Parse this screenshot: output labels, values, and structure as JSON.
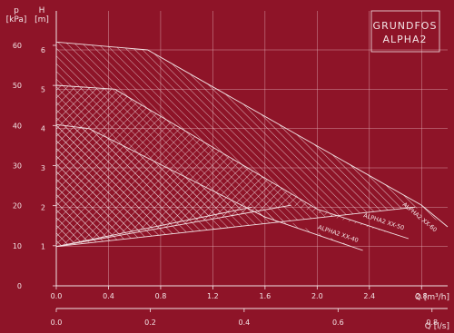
{
  "brand": {
    "line1": "GRUNDFOS",
    "line2": "ALPHA2"
  },
  "colors": {
    "background": "#8e1428",
    "ink": "#f3e4e6",
    "grid": "#e7b7bf"
  },
  "chart_data": {
    "type": "line",
    "title": "",
    "xlabel": "Q [m³/h]",
    "x2label": "Q [l/s]",
    "ylabel_left": "p [kPa]",
    "ylabel_right": "H [m]",
    "x_ticks": [
      "0.0",
      "0.4",
      "0.8",
      "1.2",
      "1.6",
      "2.0",
      "2.4",
      "2.8"
    ],
    "x2_ticks": [
      "0.0",
      "0.2",
      "0.4",
      "0.6",
      "0.8"
    ],
    "y_left_ticks": [
      "0",
      "10",
      "20",
      "30",
      "40",
      "50",
      "60"
    ],
    "y_right_ticks": [
      "1",
      "2",
      "3",
      "4",
      "5",
      "6"
    ],
    "xlim": [
      0,
      3.0
    ],
    "ylim_m": [
      0,
      6.5
    ],
    "grid": true,
    "series": [
      {
        "name": "ALPHA2 XX-40",
        "max_curve": [
          [
            0.0,
            4.1
          ],
          [
            0.25,
            4.0
          ],
          [
            1.6,
            1.75
          ],
          [
            2.35,
            0.9
          ]
        ],
        "min_curve": [
          [
            0.0,
            1.0
          ],
          [
            1.5,
            2.0
          ]
        ]
      },
      {
        "name": "ALPHA2 XX-50",
        "max_curve": [
          [
            0.0,
            5.1
          ],
          [
            0.45,
            5.0
          ],
          [
            2.0,
            1.95
          ],
          [
            2.7,
            1.2
          ]
        ],
        "min_curve": [
          [
            0.0,
            1.0
          ],
          [
            1.8,
            2.05
          ]
        ]
      },
      {
        "name": "ALPHA2 XX-60",
        "max_curve": [
          [
            0.0,
            6.2
          ],
          [
            0.7,
            6.0
          ],
          [
            2.8,
            2.05
          ],
          [
            3.0,
            1.5
          ]
        ],
        "min_curve": [
          [
            0.0,
            1.0
          ],
          [
            2.75,
            2.0
          ]
        ]
      }
    ]
  }
}
